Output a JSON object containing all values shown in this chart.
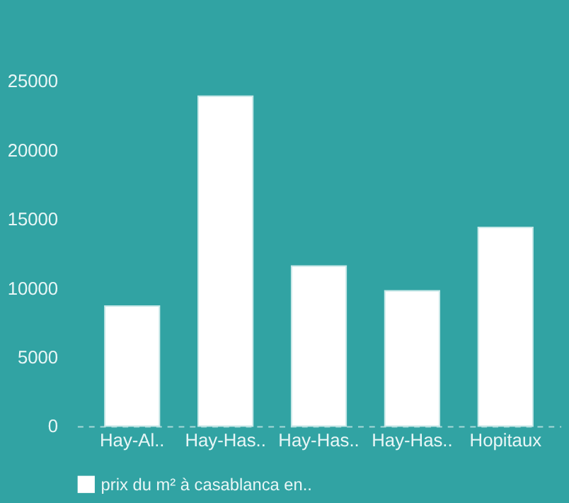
{
  "chart_data": {
    "type": "bar",
    "categories": [
      "Hay-Al..",
      "Hay-Has..",
      "Hay-Has..",
      "Hay-Has..",
      "Hopitaux"
    ],
    "series": [
      {
        "name": "prix du m² à casablanca en..",
        "color": "#ffffff",
        "values": [
          8700,
          23900,
          11600,
          9800,
          14400
        ]
      }
    ],
    "ylim": [
      0,
      25000
    ],
    "yticks": [
      0,
      5000,
      10000,
      15000,
      20000,
      25000
    ],
    "grid": false,
    "legend": "bottom"
  }
}
